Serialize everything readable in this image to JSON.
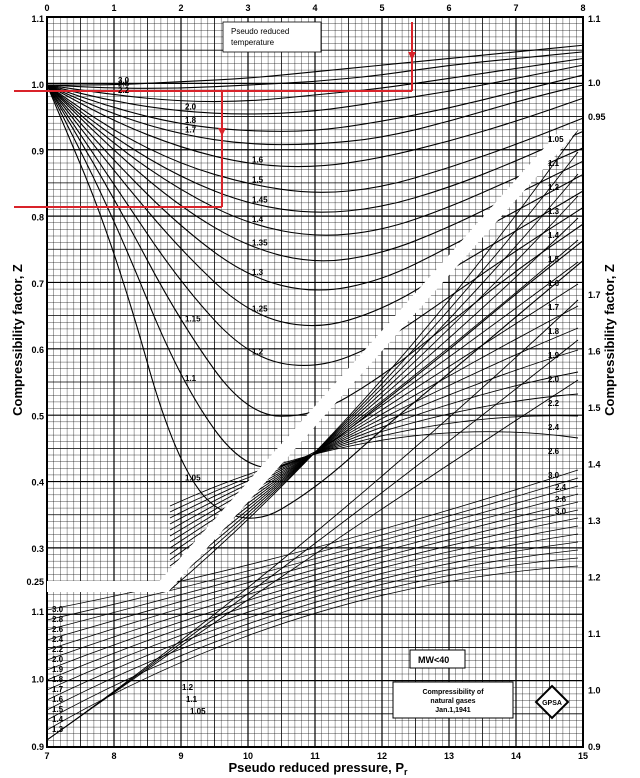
{
  "chart_data": {
    "type": "line",
    "title": "",
    "xlabel": "Pseudo reduced pressure, P",
    "xlabel_subscript": "r",
    "ylabel_left": "Compressibility factor, Z",
    "ylabel_right": "Compressibility factor, Z",
    "grid": true,
    "top_axis": {
      "range": [
        0,
        8
      ],
      "ticks": [
        "0",
        "1",
        "2",
        "3",
        "4",
        "5",
        "6",
        "7",
        "8"
      ]
    },
    "bottom_axis": {
      "range": [
        7,
        15
      ],
      "ticks": [
        "7",
        "8",
        "9",
        "10",
        "11",
        "12",
        "13",
        "14",
        "15"
      ]
    },
    "upper_left_axis": {
      "range": [
        0.25,
        1.1
      ],
      "ticks": [
        "1.1",
        "1.0",
        "0.9",
        "0.8",
        "0.7",
        "0.6",
        "0.5",
        "0.4",
        "0.3",
        "0.25"
      ]
    },
    "lower_left_axis": {
      "range": [
        0.9,
        1.1
      ],
      "ticks": [
        "1.1",
        "1.0",
        "0.9"
      ]
    },
    "right_axis_upper": {
      "ticks": [
        "1.1",
        "1.0",
        "0.95"
      ]
    },
    "right_axis_lower": {
      "range": [
        0.9,
        1.7
      ],
      "ticks": [
        "1.7",
        "1.6",
        "1.5",
        "1.4",
        "1.3",
        "1.2",
        "1.1",
        "1.0",
        "0.9"
      ]
    },
    "inset_legend": "Pseudo reduced\ntemperature",
    "low_pressure_series": [
      {
        "name": "3.0",
        "x": [
          0,
          1,
          2,
          3,
          4,
          5,
          6,
          7,
          8
        ],
        "y": [
          1.0,
          1.0,
          1.005,
          1.01,
          1.02,
          1.03,
          1.04,
          1.05,
          1.06
        ]
      },
      {
        "name": "2.6",
        "x": [
          0,
          1,
          2,
          3,
          4,
          5,
          6,
          7,
          8
        ],
        "y": [
          1.0,
          0.995,
          0.995,
          1.0,
          1.005,
          1.015,
          1.03,
          1.04,
          1.05
        ]
      },
      {
        "name": "2.2",
        "x": [
          0,
          1,
          2,
          3,
          4,
          5,
          6,
          7,
          8
        ],
        "y": [
          1.0,
          0.985,
          0.975,
          0.975,
          0.985,
          0.995,
          1.01,
          1.025,
          1.04
        ]
      },
      {
        "name": "2.0",
        "x": [
          0,
          1,
          2,
          3,
          4,
          5,
          6,
          7,
          8
        ],
        "y": [
          1.0,
          0.975,
          0.96,
          0.955,
          0.96,
          0.975,
          0.99,
          1.01,
          1.03
        ]
      },
      {
        "name": "1.8",
        "x": [
          0,
          1,
          2,
          3,
          4,
          5,
          6,
          7,
          8
        ],
        "y": [
          1.0,
          0.965,
          0.94,
          0.93,
          0.93,
          0.945,
          0.965,
          0.99,
          1.015
        ]
      },
      {
        "name": "1.7",
        "x": [
          0,
          1,
          2,
          3,
          4,
          5,
          6,
          7,
          8
        ],
        "y": [
          1.0,
          0.955,
          0.925,
          0.91,
          0.91,
          0.92,
          0.945,
          0.975,
          1.0
        ]
      },
      {
        "name": "1.6",
        "x": [
          0,
          1,
          2,
          3,
          4,
          5,
          6,
          7,
          8
        ],
        "y": [
          1.0,
          0.945,
          0.905,
          0.88,
          0.875,
          0.89,
          0.915,
          0.945,
          0.98
        ]
      },
      {
        "name": "1.5",
        "x": [
          0,
          1,
          2,
          3,
          4,
          5,
          6,
          7,
          8
        ],
        "y": [
          1.0,
          0.93,
          0.88,
          0.85,
          0.835,
          0.845,
          0.875,
          0.91,
          0.95
        ]
      },
      {
        "name": "1.45",
        "x": [
          0,
          1,
          2,
          3,
          4,
          5,
          6,
          7,
          8
        ],
        "y": [
          1.0,
          0.92,
          0.86,
          0.82,
          0.805,
          0.815,
          0.845,
          0.885,
          0.93
        ]
      },
      {
        "name": "1.4",
        "x": [
          0,
          1,
          2,
          3,
          4,
          5,
          6,
          7,
          8
        ],
        "y": [
          1.0,
          0.91,
          0.84,
          0.79,
          0.77,
          0.78,
          0.815,
          0.86,
          0.905
        ]
      },
      {
        "name": "1.35",
        "x": [
          0,
          1,
          2,
          3,
          4,
          5,
          6,
          7,
          8
        ],
        "y": [
          1.0,
          0.9,
          0.815,
          0.755,
          0.73,
          0.745,
          0.785,
          0.835,
          0.885
        ]
      },
      {
        "name": "1.3",
        "x": [
          0,
          1,
          2,
          3,
          4,
          5,
          6,
          7,
          8
        ],
        "y": [
          1.0,
          0.885,
          0.785,
          0.71,
          0.685,
          0.705,
          0.755,
          0.81,
          0.865
        ]
      },
      {
        "name": "1.25",
        "x": [
          0,
          1,
          2,
          3,
          4,
          5,
          6,
          7,
          8
        ],
        "y": [
          1.0,
          0.87,
          0.75,
          0.655,
          0.63,
          0.66,
          0.72,
          0.78,
          0.84
        ]
      },
      {
        "name": "1.2",
        "x": [
          0,
          1,
          2,
          3,
          4,
          5,
          6,
          7,
          8
        ],
        "y": [
          1.0,
          0.85,
          0.7,
          0.59,
          0.57,
          0.61,
          0.68,
          0.75,
          0.815
        ]
      },
      {
        "name": "1.15",
        "x": [
          0,
          1,
          2,
          3,
          4,
          5,
          6,
          7,
          8
        ],
        "y": [
          1.0,
          0.83,
          0.64,
          0.5,
          0.5,
          0.56,
          0.64,
          0.72,
          0.79
        ]
      },
      {
        "name": "1.1",
        "x": [
          0,
          1,
          2,
          3,
          4,
          5,
          6,
          7,
          8
        ],
        "y": [
          1.0,
          0.8,
          0.55,
          0.41,
          0.44,
          0.52,
          0.6,
          0.685,
          0.765
        ]
      },
      {
        "name": "1.05",
        "x": [
          0,
          1,
          2,
          3,
          4,
          5,
          6,
          7,
          8
        ],
        "y": [
          1.0,
          0.76,
          0.4,
          0.33,
          0.39,
          0.48,
          0.565,
          0.65,
          0.735
        ]
      }
    ],
    "high_pressure_tr_labels": [
      "1.05",
      "1.1",
      "1.2",
      "1.3",
      "1.4",
      "1.5",
      "1.6",
      "1.7",
      "1.8",
      "1.9",
      "2.0",
      "2.2",
      "2.4",
      "2.6",
      "3.0"
    ],
    "lower_right_labels": [
      "2.4",
      "2.6",
      "3.0"
    ],
    "lower_left_labels": [
      "3.0",
      "2.8",
      "2.6",
      "2.4",
      "2.2",
      "2.0",
      "1.9",
      "1.8",
      "1.7",
      "1.6",
      "1.5",
      "1.4",
      "1.3"
    ],
    "lower_center_labels": [
      "1.2",
      "1.1",
      "1.05"
    ],
    "annotations": {
      "mw_label": "MW<40",
      "caption_line1": "Compressibility of",
      "caption_line2": "natural gases",
      "caption_line3": "Jan.1,1941",
      "logo": "GPSA"
    },
    "overlay_lines_color": "#d9232a"
  }
}
